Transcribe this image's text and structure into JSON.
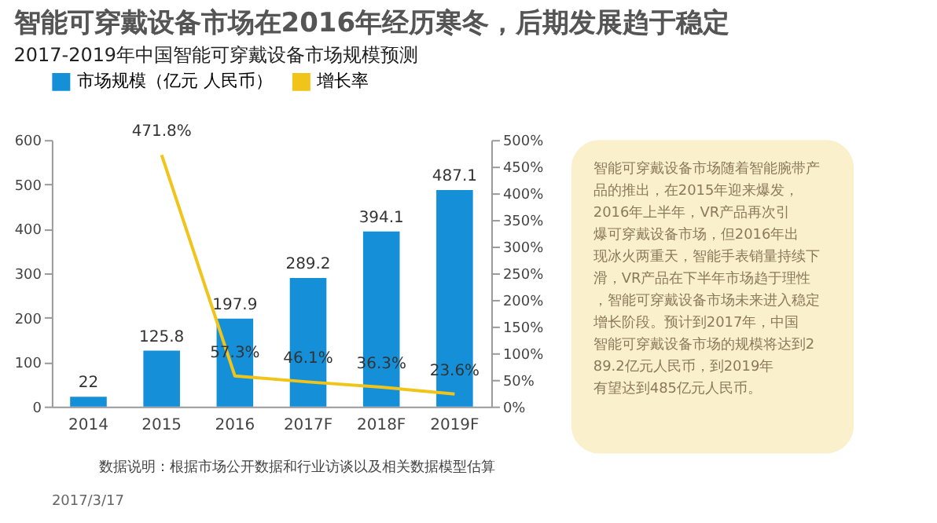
{
  "chart_data": {
    "type": "bar",
    "title": "智能可穿戴设备市场在2016年经历寒冬，后期发展趋于稳定",
    "subtitle": "2017-2019年中国智能可穿戴设备市场规模预测",
    "categories": [
      "2014",
      "2015",
      "2016",
      "2017F",
      "2018F",
      "2019F"
    ],
    "series": [
      {
        "name": "市场规模（亿元 人民币）",
        "color": "#1590d8",
        "values": [
          22,
          125.8,
          197.9,
          289.2,
          394.1,
          487.1
        ]
      },
      {
        "name": "增长率",
        "type": "line",
        "axis": "y2",
        "color": "#f0c419",
        "values": [
          null,
          471.8,
          57.3,
          46.1,
          36.3,
          23.6
        ],
        "value_labels": [
          null,
          "471.8%",
          "57.3%",
          "46.1%",
          "36.3%",
          "23.6%"
        ]
      }
    ],
    "ylim": [
      0,
      600
    ],
    "yticks": [
      0,
      100,
      200,
      300,
      400,
      500,
      600
    ],
    "y2lim": [
      0,
      500
    ],
    "y2ticks": [
      {
        "value": 0,
        "label": "0%"
      },
      {
        "value": 50,
        "label": "50%"
      },
      {
        "value": 100,
        "label": "100%"
      },
      {
        "value": 150,
        "label": "150%"
      },
      {
        "value": 200,
        "label": "200%"
      },
      {
        "value": 250,
        "label": "250%"
      },
      {
        "value": 300,
        "label": "300%"
      },
      {
        "value": 350,
        "label": "350%"
      },
      {
        "value": 400,
        "label": "400%"
      },
      {
        "value": 450,
        "label": "450%"
      },
      {
        "value": 500,
        "label": "500%"
      }
    ],
    "data_labels": true,
    "grid": false,
    "legend": "top",
    "annotations": [
      "数据说明：根据市场公开数据和行业访谈以及相关数据模型估算",
      "智能可穿戴设备市场随着智能腕带产品的推出，在2015年迎来爆发，2016年上半年，VR产品再次引爆可穿戴设备市场，但2016年出现冰火两重天，智能手表销量持续下滑，VR产品在下半年市场趋于理性，智能可穿戴设备市场未来进入稳定增长阶段。预计到2017年，中国智能可穿戴设备市场的规模将达到289.2亿元人民币，到2019年有望达到485亿元人民币。",
      "2017/3/17"
    ]
  }
}
